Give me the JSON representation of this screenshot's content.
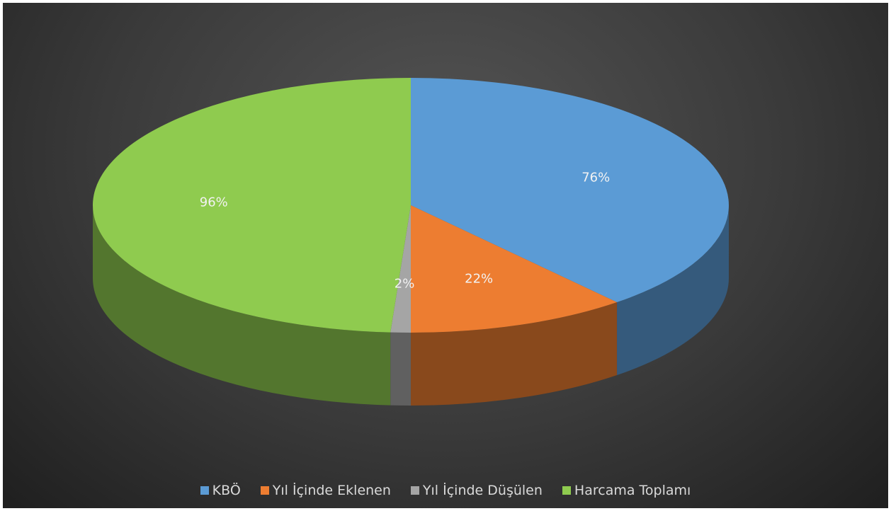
{
  "chart_data": {
    "type": "pie",
    "categories": [
      "KBÖ",
      "Yıl İçinde Eklenen",
      "Yıl İçinde Düşülen",
      "Harcama Toplamı"
    ],
    "values": [
      76,
      22,
      2,
      96
    ],
    "data_labels": [
      "76%",
      "22%",
      "2%",
      "96%"
    ],
    "colors": [
      "#5B9BD5",
      "#ED7D31",
      "#A5A5A5",
      "#8FCB4F"
    ],
    "legend_position": "bottom",
    "style": "3d"
  }
}
